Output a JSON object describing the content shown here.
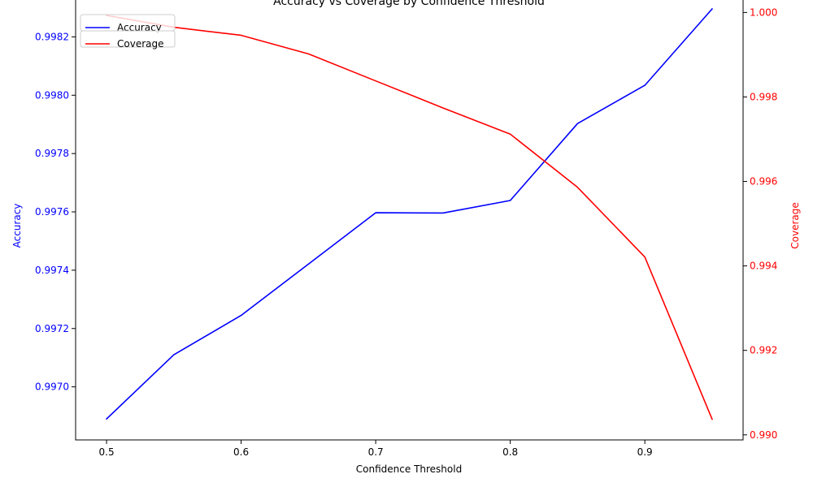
{
  "chart_data": {
    "type": "line",
    "title": "Accuracy vs Coverage by Confidence Threshold",
    "xlabel": "Confidence Threshold",
    "ylabel_left": "Accuracy",
    "ylabel_right": "Coverage",
    "x": [
      0.5,
      0.55,
      0.6,
      0.65,
      0.7,
      0.75,
      0.8,
      0.85,
      0.9,
      0.95
    ],
    "xlim": [
      0.477,
      0.973
    ],
    "xticks": [
      "0.5",
      "0.6",
      "0.7",
      "0.8",
      "0.9"
    ],
    "xtick_values": [
      0.5,
      0.6,
      0.7,
      0.8,
      0.9
    ],
    "ylim_left": [
      0.996818,
      0.998346
    ],
    "yticks_left": [
      "0.9970",
      "0.9972",
      "0.9974",
      "0.9976",
      "0.9978",
      "0.9980",
      "0.9982"
    ],
    "ytick_values_left": [
      0.997,
      0.9972,
      0.9974,
      0.9976,
      0.9978,
      0.998,
      0.9982
    ],
    "ylim_right": [
      0.98988,
      1.00043
    ],
    "yticks_right": [
      "0.990",
      "0.992",
      "0.994",
      "0.996",
      "0.998",
      "1.000"
    ],
    "ytick_values_right": [
      0.99,
      0.992,
      0.994,
      0.996,
      0.998,
      1.0
    ],
    "legend_position": "top-left",
    "grid": false,
    "series": [
      {
        "name": "Accuracy",
        "axis": "left",
        "color": "#0000ff",
        "values": [
          0.99689,
          0.99711,
          0.997245,
          0.997421,
          0.997597,
          0.997596,
          0.997639,
          0.997903,
          0.998034,
          0.998296
        ]
      },
      {
        "name": "Coverage",
        "axis": "right",
        "color": "#ff0000",
        "values": [
          0.99993,
          0.99965,
          0.99946,
          0.99902,
          0.99838,
          0.99774,
          0.99712,
          0.99586,
          0.99421,
          0.99037
        ]
      }
    ]
  }
}
